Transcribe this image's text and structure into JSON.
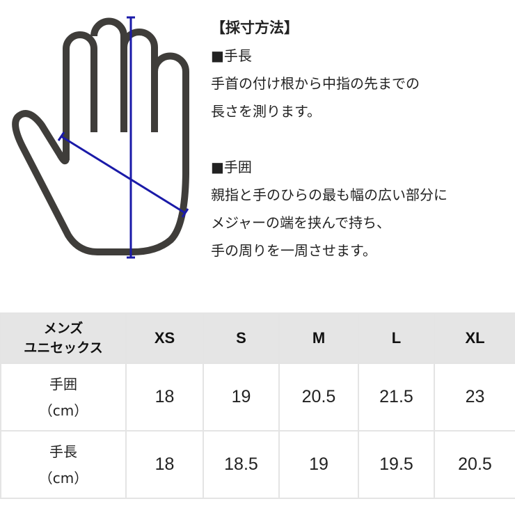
{
  "diagram": {
    "outline_color": "#3f3d3a",
    "measure_color": "#1a1aa8",
    "icon": "hand-measurement-diagram"
  },
  "instructions": {
    "title": "【採寸方法】",
    "length_heading": "■手長",
    "length_lines": [
      "手首の付け根から中指の先までの",
      "長さを測ります。"
    ],
    "girth_heading": "■手囲",
    "girth_lines": [
      "親指と手のひらの最も幅の広い部分に",
      "メジャーの端を挟んで持ち、",
      "手の周りを一周させます。"
    ]
  },
  "table": {
    "corner": [
      "メンズ",
      "ユニセックス"
    ],
    "sizes": [
      "XS",
      "S",
      "M",
      "L",
      "XL"
    ],
    "rows": [
      {
        "label": "手囲",
        "unit": "（cm）",
        "values": [
          "18",
          "19",
          "20.5",
          "21.5",
          "23"
        ]
      },
      {
        "label": "手長",
        "unit": "（cm）",
        "values": [
          "18",
          "18.5",
          "19",
          "19.5",
          "20.5"
        ]
      }
    ],
    "header_bg": "#e5e5e5"
  }
}
